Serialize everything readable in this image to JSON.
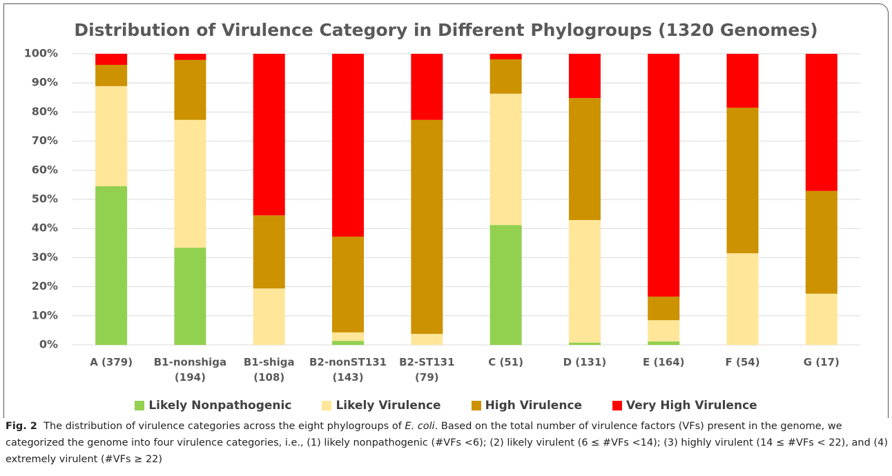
{
  "chart_data": {
    "type": "stacked_bar",
    "title": "Distribution of Virulence Category in Different Phylogroups (1320 Genomes)",
    "categories": [
      "A (379)",
      "B1-nonshiga (194)",
      "B1-shiga (108)",
      "B2-nonST131 (143)",
      "B2-ST131 (79)",
      "C (51)",
      "D (131)",
      "E (164)",
      "F (54)",
      "G (17)"
    ],
    "series": [
      {
        "name": "Likely Nonpathogenic",
        "color": "#92d050",
        "values": [
          54.5,
          33.4,
          0,
          1.4,
          0,
          41.2,
          0.8,
          1.2,
          0,
          0
        ]
      },
      {
        "name": "Likely Virulence",
        "color": "#ffe699",
        "values": [
          34.4,
          43.9,
          19.4,
          2.9,
          3.8,
          45.1,
          42.1,
          7.3,
          31.5,
          17.6
        ]
      },
      {
        "name": "High Virulence",
        "color": "#cc9200",
        "values": [
          7.3,
          20.6,
          25.1,
          32.9,
          73.5,
          11.8,
          41.9,
          8.1,
          50.0,
          35.3
        ]
      },
      {
        "name": "Very High Virulence",
        "color": "#ff0000",
        "values": [
          3.8,
          2.1,
          55.5,
          62.8,
          22.7,
          1.9,
          15.2,
          83.4,
          18.5,
          47.1
        ]
      }
    ],
    "ylim": [
      0,
      100
    ],
    "yticks": [
      {
        "value": 0,
        "label": "0%"
      },
      {
        "value": 10,
        "label": "10%"
      },
      {
        "value": 20,
        "label": "20%"
      },
      {
        "value": 30,
        "label": "30%"
      },
      {
        "value": 40,
        "label": "40%"
      },
      {
        "value": 50,
        "label": "50%"
      },
      {
        "value": 60,
        "label": "60%"
      },
      {
        "value": 70,
        "label": "70%"
      },
      {
        "value": 80,
        "label": "80%"
      },
      {
        "value": 90,
        "label": "90%"
      },
      {
        "value": 100,
        "label": "100%"
      }
    ],
    "grid": true,
    "legend": "bottom"
  },
  "caption": {
    "label": "Fig. 2",
    "text_1": "The distribution of virulence categories across the eight phylogroups of",
    "italic": "E. coli",
    "text_2": ". Based on the total number of virulence factors (VFs) present in the genome, we categorized the genome into four virulence categories, i.e., (1) likely nonpathogenic (#VFs <6); (2) likely virulent (6 ≤ #VFs <14); (3) highly virulent (14 ≤ #VFs < 22), and (4) extremely virulent (#VFs ≥ 22)"
  }
}
